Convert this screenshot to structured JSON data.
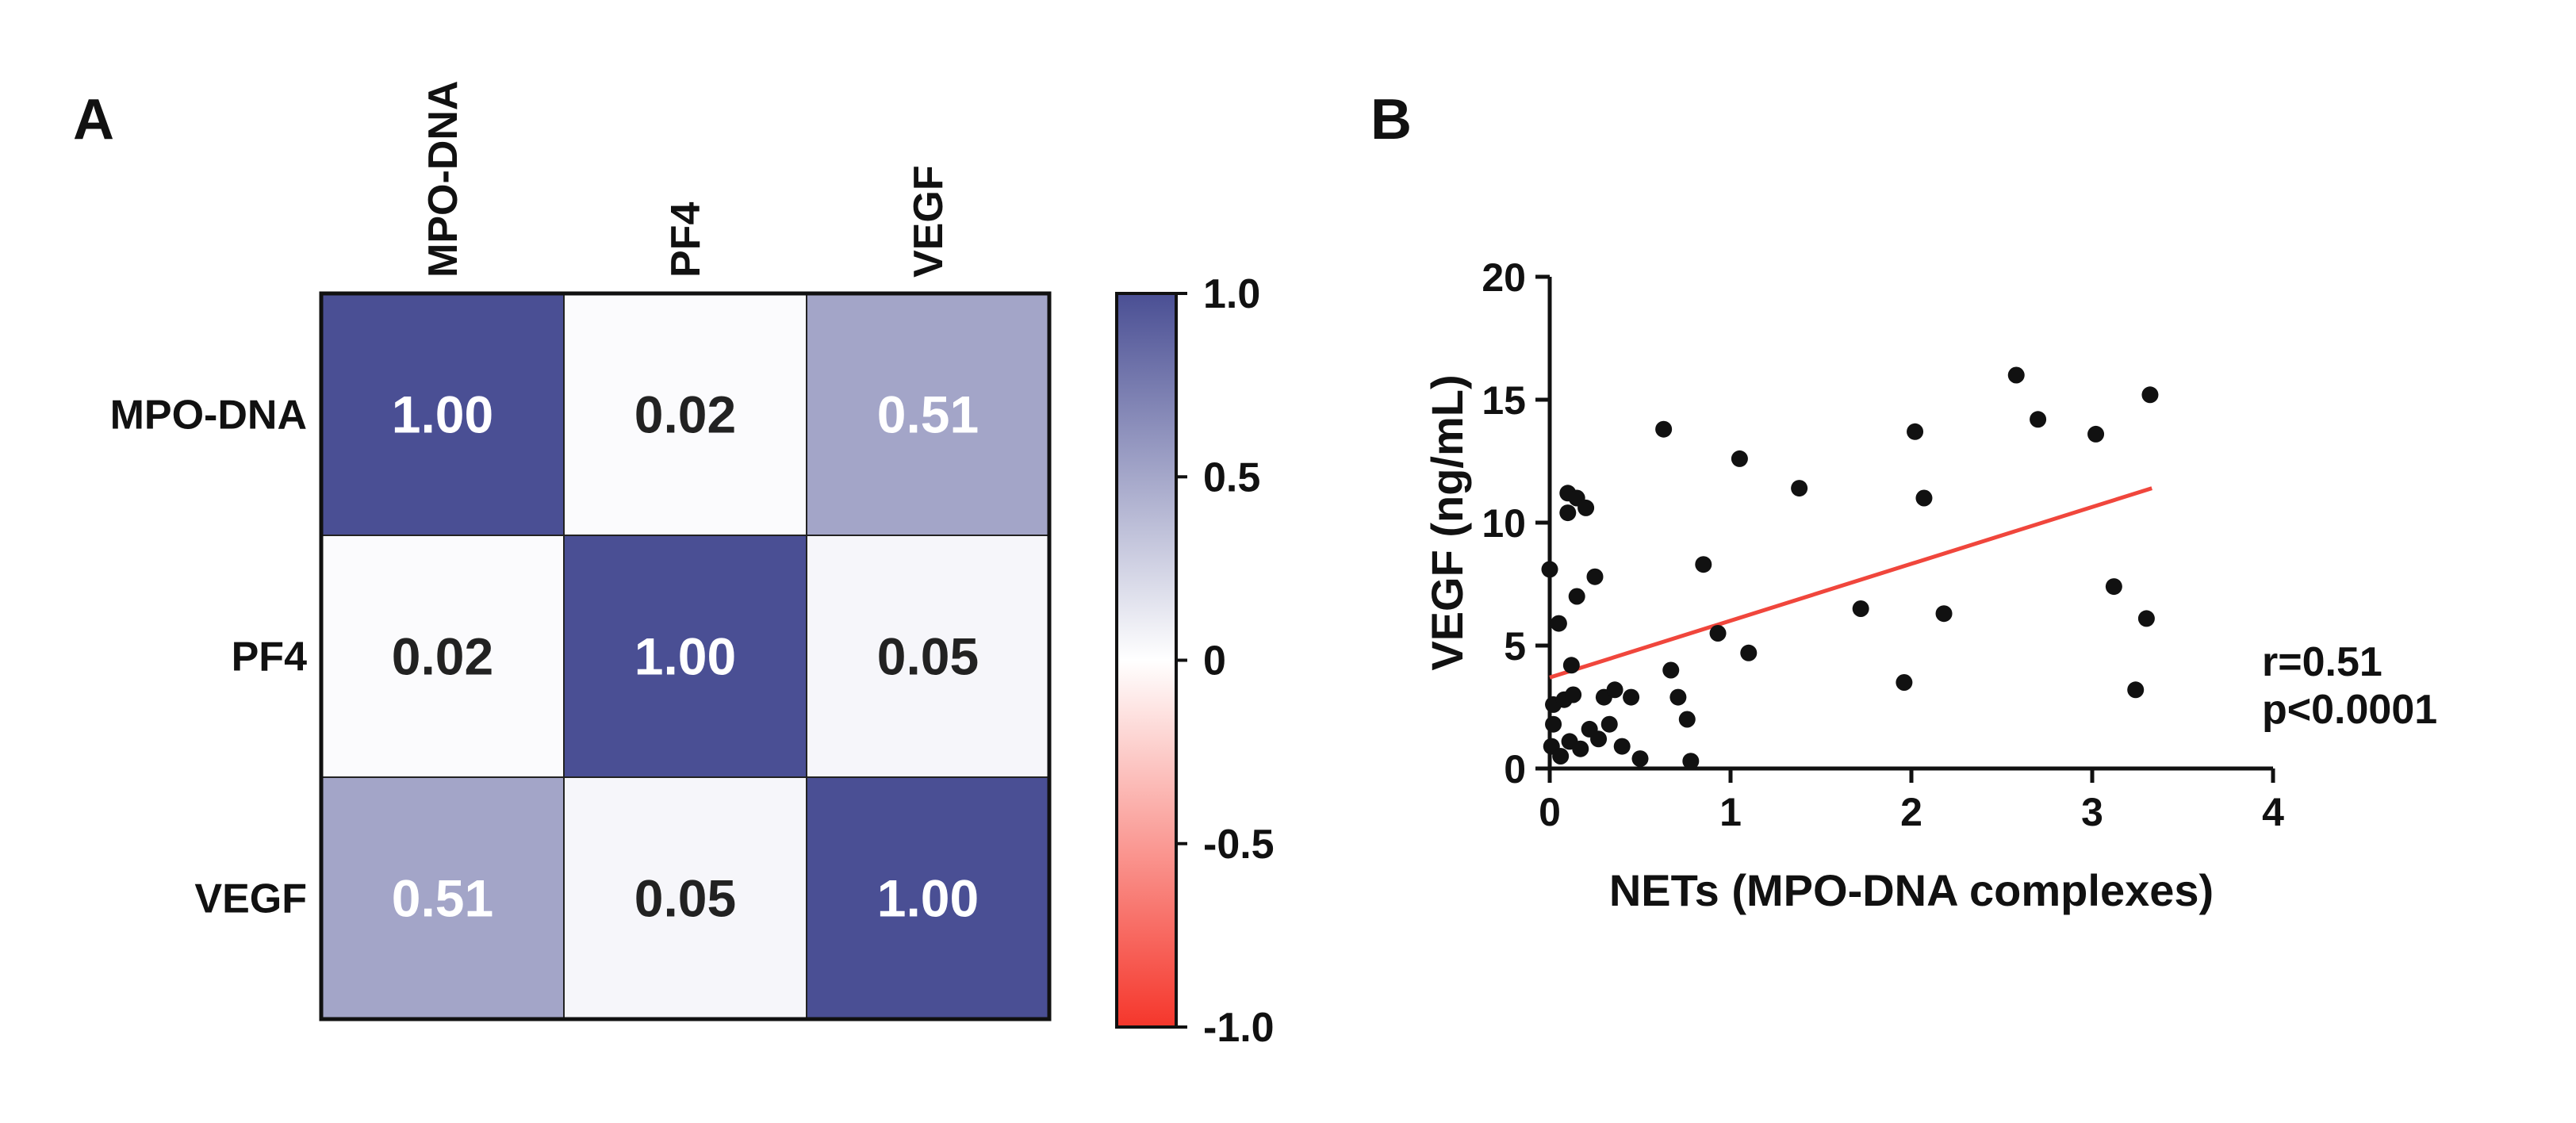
{
  "chart_data": [
    {
      "type": "heatmap",
      "panel": "A",
      "row_labels": [
        "MPO-DNA",
        "PF4",
        "VEGF"
      ],
      "col_labels": [
        "MPO-DNA",
        "PF4",
        "VEGF"
      ],
      "values": [
        [
          1.0,
          0.02,
          0.51
        ],
        [
          0.02,
          1.0,
          0.05
        ],
        [
          0.51,
          0.05,
          1.0
        ]
      ],
      "value_labels": [
        [
          "1.00",
          "0.02",
          "0.51"
        ],
        [
          "0.02",
          "1.00",
          "0.05"
        ],
        [
          "0.51",
          "0.05",
          "1.00"
        ]
      ],
      "colorbar": {
        "range": [
          -1.0,
          1.0
        ],
        "ticks": [
          1.0,
          0.5,
          0,
          -0.5,
          -1.0
        ],
        "tick_labels": [
          "1.0",
          "0.5",
          "0",
          "-0.5",
          "-1.0"
        ],
        "colors": {
          "high": "#4a4f94",
          "mid": "#ffffff",
          "low": "#f5362b"
        }
      }
    },
    {
      "type": "scatter",
      "panel": "B",
      "xlabel": "NETs (MPO-DNA complexes)",
      "ylabel": "VEGF (ng/mL)",
      "xlim": [
        0,
        4
      ],
      "ylim": [
        0,
        20
      ],
      "xticks": [
        0,
        1,
        2,
        3,
        4
      ],
      "yticks": [
        0,
        5,
        10,
        15,
        20
      ],
      "x_tick_labels": [
        "0",
        "1",
        "2",
        "3",
        "4"
      ],
      "y_tick_labels": [
        "0",
        "5",
        "10",
        "15",
        "20"
      ],
      "points": [
        [
          0.0,
          8.1
        ],
        [
          0.05,
          5.9
        ],
        [
          0.1,
          10.4
        ],
        [
          0.1,
          11.2
        ],
        [
          0.15,
          11.0
        ],
        [
          0.2,
          10.6
        ],
        [
          0.15,
          7.0
        ],
        [
          0.25,
          7.8
        ],
        [
          0.12,
          4.2
        ],
        [
          0.02,
          2.6
        ],
        [
          0.08,
          2.8
        ],
        [
          0.13,
          3.0
        ],
        [
          0.02,
          1.8
        ],
        [
          0.01,
          0.9
        ],
        [
          0.06,
          0.5
        ],
        [
          0.11,
          1.1
        ],
        [
          0.17,
          0.8
        ],
        [
          0.22,
          1.6
        ],
        [
          0.27,
          1.2
        ],
        [
          0.3,
          2.9
        ],
        [
          0.33,
          1.8
        ],
        [
          0.36,
          3.2
        ],
        [
          0.4,
          0.9
        ],
        [
          0.45,
          2.9
        ],
        [
          0.5,
          0.4
        ],
        [
          0.63,
          13.8
        ],
        [
          0.67,
          4.0
        ],
        [
          0.71,
          2.9
        ],
        [
          0.76,
          2.0
        ],
        [
          0.78,
          0.3
        ],
        [
          0.85,
          8.3
        ],
        [
          0.93,
          5.5
        ],
        [
          1.05,
          12.6
        ],
        [
          1.1,
          4.7
        ],
        [
          1.38,
          11.4
        ],
        [
          1.72,
          6.5
        ],
        [
          1.96,
          3.5
        ],
        [
          2.02,
          13.7
        ],
        [
          2.07,
          11.0
        ],
        [
          2.18,
          6.3
        ],
        [
          2.58,
          16.0
        ],
        [
          2.7,
          14.2
        ],
        [
          3.02,
          13.6
        ],
        [
          3.12,
          7.4
        ],
        [
          3.24,
          3.2
        ],
        [
          3.3,
          6.1
        ],
        [
          3.32,
          15.2
        ]
      ],
      "fit_line": {
        "x": [
          0,
          3.33
        ],
        "y": [
          3.7,
          11.4
        ],
        "color": "#f0463c"
      },
      "annotations": [
        "r=0.51",
        "p<0.0001"
      ]
    }
  ],
  "panel_labels": {
    "a": "A",
    "b": "B"
  }
}
